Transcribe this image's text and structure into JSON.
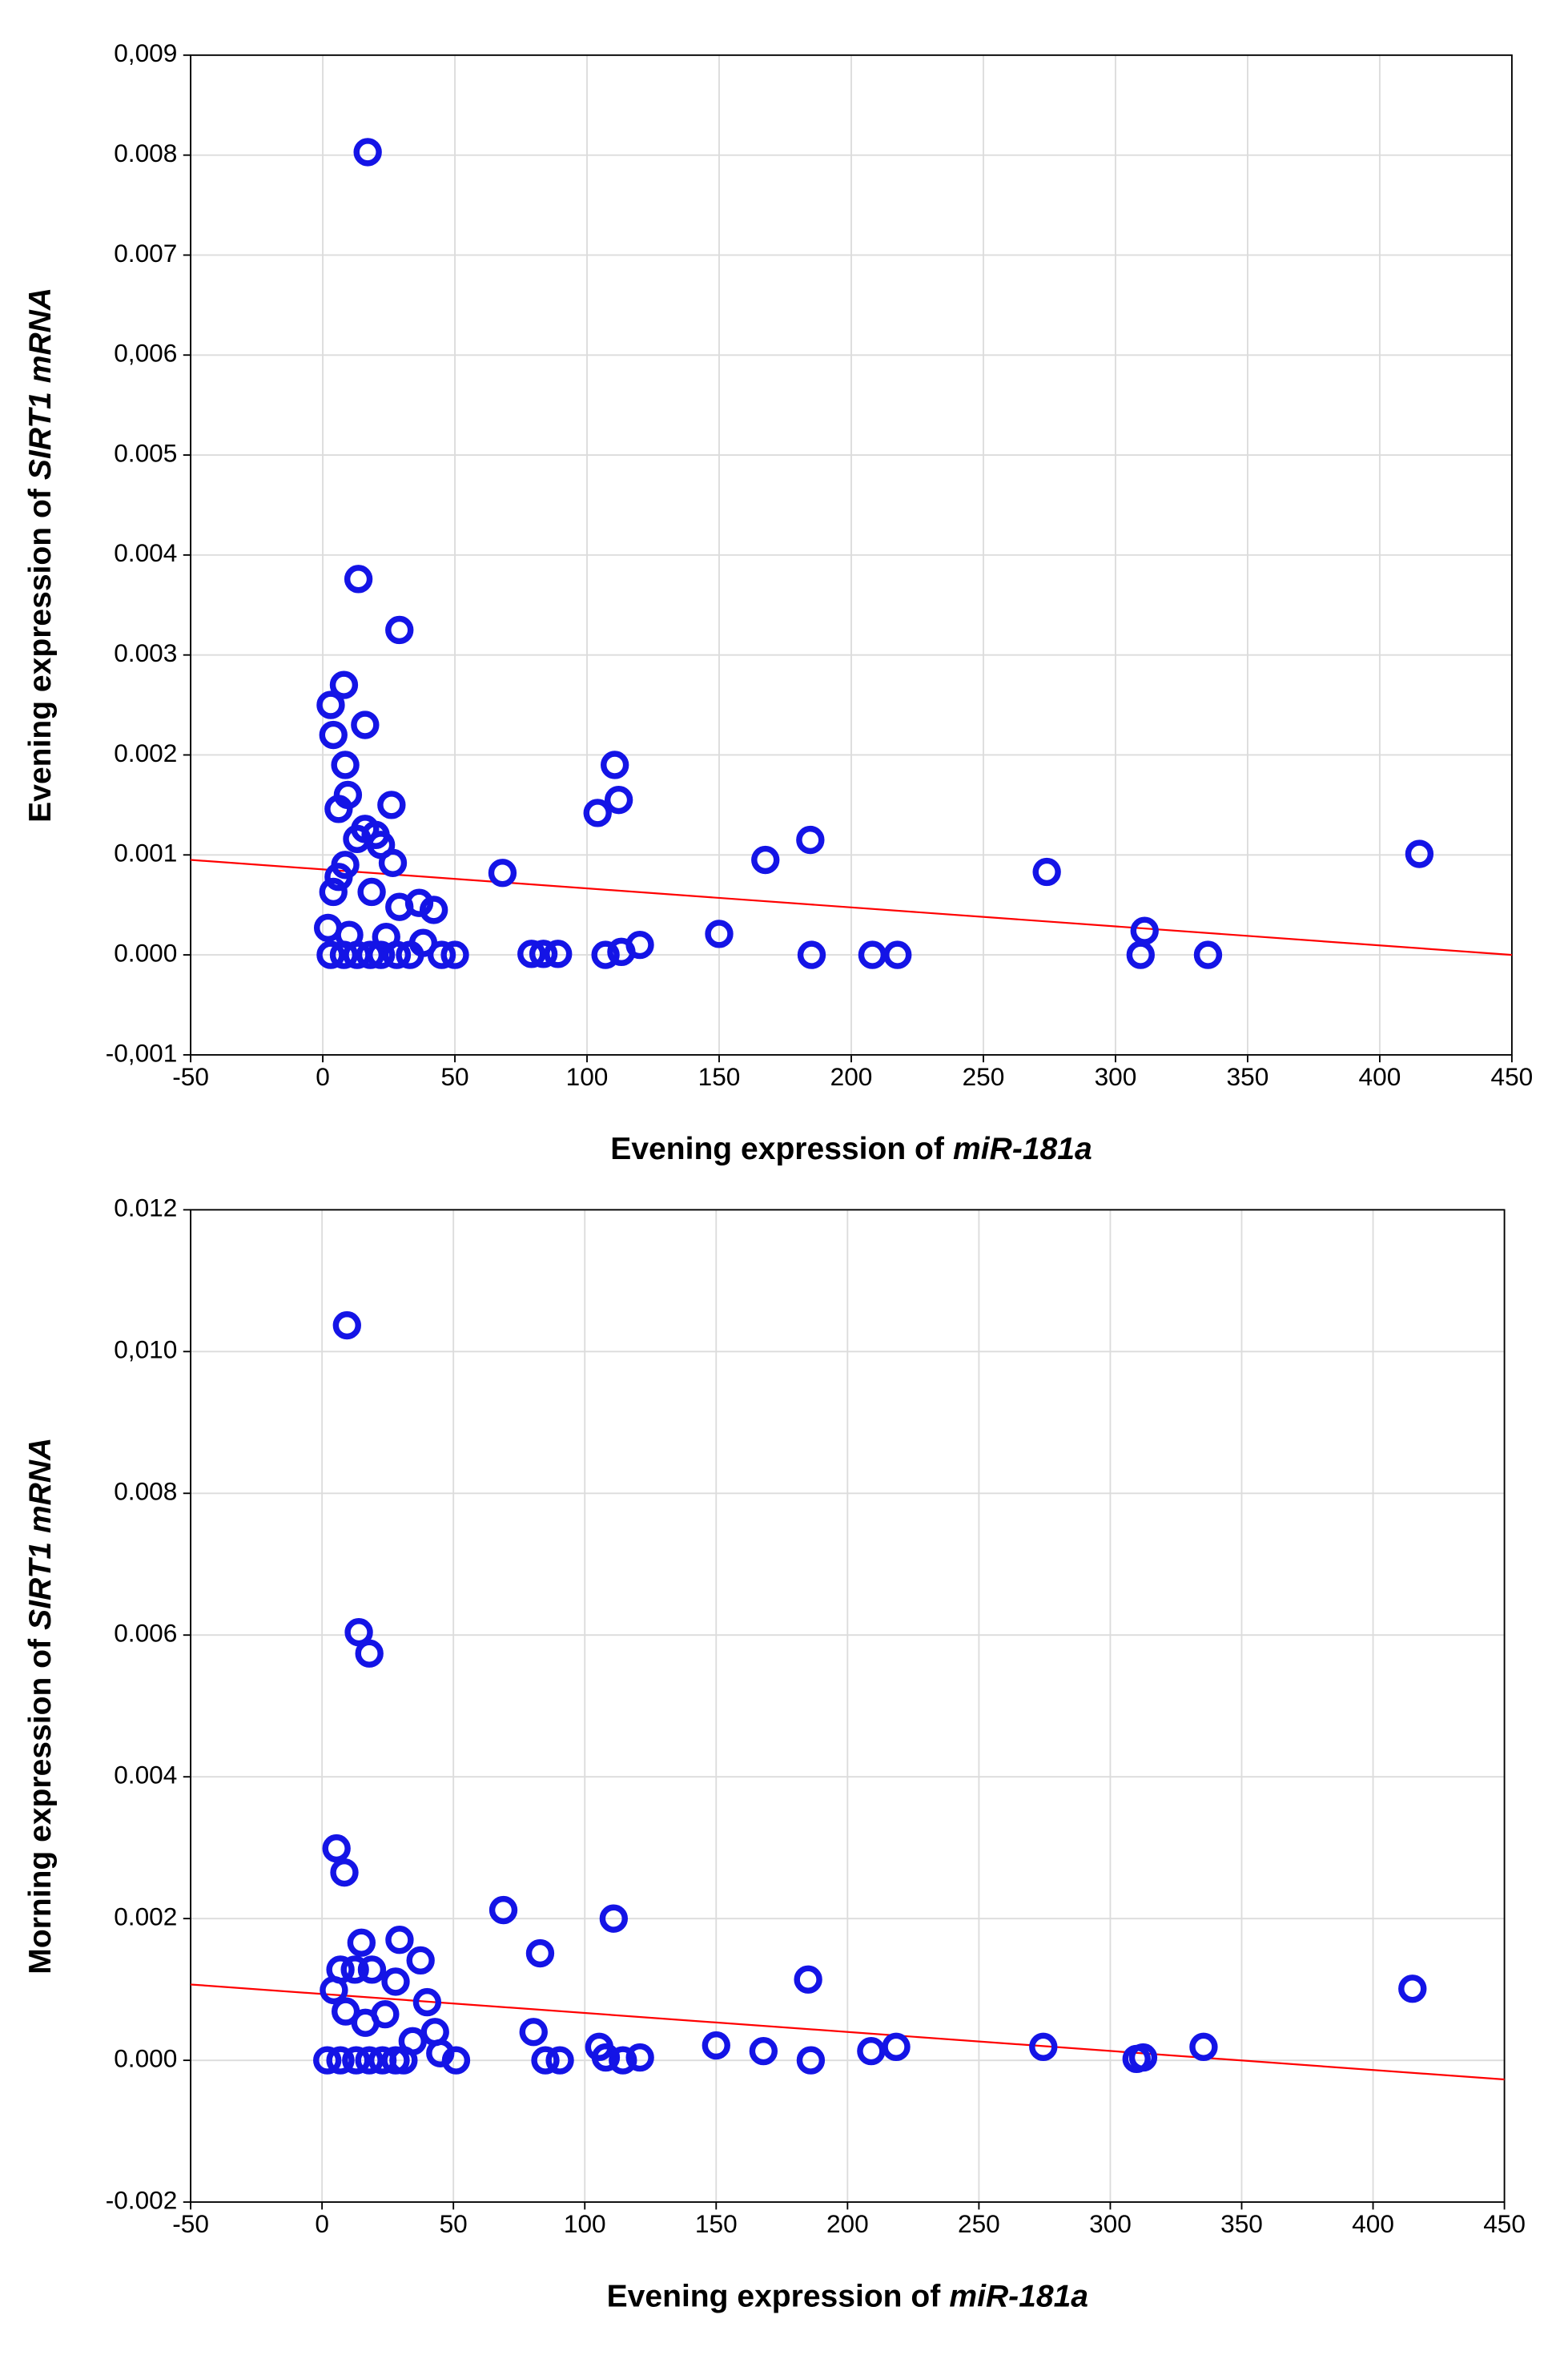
{
  "chart_data": [
    {
      "type": "scatter",
      "xlabel": {
        "text": "Evening expression of",
        "italic": "miR-181a"
      },
      "ylabel": {
        "text": "Evening expression of",
        "italic": "SIRT1 mRNA"
      },
      "xlim": [
        -50,
        450
      ],
      "xticks": [
        -50,
        0,
        50,
        100,
        150,
        200,
        250,
        300,
        350,
        400,
        450
      ],
      "ylim": [
        -0.001,
        0.009
      ],
      "yticks": [
        {
          "value": -0.001,
          "label": "-0,001"
        },
        {
          "value": 0,
          "label": "0.000"
        },
        0.001,
        0.002,
        0.003,
        0.004,
        0.005,
        {
          "value": 0.006,
          "label": "0,006"
        },
        0.007,
        0.008,
        {
          "value": 0.009,
          "label": "0,009"
        }
      ],
      "grid": true,
      "color": "#1414e6",
      "x": [
        17,
        13.5,
        29,
        8,
        3,
        4,
        16,
        8.5,
        9.5,
        6,
        26,
        16,
        20,
        13,
        22,
        26.5,
        6,
        8.5,
        4,
        18.5,
        36.5,
        42,
        29,
        2,
        10,
        24,
        38,
        3,
        8,
        13,
        18,
        22,
        28,
        33,
        45,
        50,
        68,
        104,
        110.5,
        112,
        79,
        83.5,
        89,
        107,
        113,
        120,
        150,
        167.5,
        184.5,
        185,
        208,
        217.5,
        274,
        309.5,
        311,
        335,
        415
      ],
      "y": [
        0.00803,
        0.00376,
        0.00325,
        0.0027,
        0.0025,
        0.0022,
        0.0023,
        0.0019,
        0.0016,
        0.00146,
        0.0015,
        0.00126,
        0.0012,
        0.00116,
        0.0011,
        0.00092,
        0.00078,
        0.0009,
        0.00063,
        0.00063,
        0.00052,
        0.00045,
        0.00048,
        0.00027,
        0.0002,
        0.00018,
        0.00012,
        0,
        0,
        0,
        0,
        0,
        0,
        0,
        0,
        0,
        0.00082,
        0.00142,
        0.0019,
        0.00155,
        1e-05,
        1e-05,
        1e-05,
        0,
        3e-05,
        0.0001,
        0.00021,
        0.00095,
        0.00115,
        0,
        0,
        0,
        0.00083,
        0,
        0.00024,
        0,
        0.00101
      ],
      "trend": {
        "x": [
          -50,
          450
        ],
        "y": [
          0.00095,
          0.0
        ],
        "color": "#ff0000"
      }
    },
    {
      "type": "scatter",
      "xlabel": {
        "text": "Evening expression of",
        "italic": "miR-181a"
      },
      "ylabel": {
        "text": "Morning expression of",
        "italic": "SIRT1 mRNA"
      },
      "xlim": [
        -50,
        450
      ],
      "xticks": [
        -50,
        0,
        50,
        100,
        150,
        200,
        250,
        300,
        350,
        400,
        450
      ],
      "ylim": [
        -0.002,
        0.012
      ],
      "yticks": [
        -0.002,
        {
          "value": 0,
          "label": "0.000"
        },
        0.002,
        0.004,
        0.006,
        0.008,
        {
          "value": 0.01,
          "label": "0,010"
        },
        0.012
      ],
      "grid": true,
      "color": "#1414e6",
      "x": [
        9.5,
        14,
        18,
        5.5,
        8.5,
        69,
        111,
        83,
        15,
        29.5,
        37.5,
        185,
        415,
        4.5,
        7,
        12.5,
        19,
        28,
        40,
        9,
        24,
        16.5,
        43,
        80.5,
        34.5,
        105.5,
        150,
        168,
        209,
        218.5,
        274.5,
        335.5,
        310,
        312.5,
        186,
        85,
        90.5,
        108,
        114.5,
        121,
        45,
        51,
        2,
        7,
        13,
        18,
        23,
        28,
        31
      ],
      "y": [
        0.01037,
        0.00604,
        0.00574,
        0.00299,
        0.00265,
        0.00212,
        0.002,
        0.00151,
        0.00166,
        0.0017,
        0.00141,
        0.00114,
        0.00101,
        0.00099,
        0.00128,
        0.00128,
        0.00128,
        0.00111,
        0.00082,
        0.00069,
        0.00065,
        0.00053,
        0.0004,
        0.0004,
        0.00027,
        0.00019,
        0.00021,
        0.00013,
        0.00013,
        0.00019,
        0.00019,
        0.00019,
        2e-05,
        4e-05,
        0,
        0,
        0,
        4e-05,
        0,
        4e-05,
        0.0001,
        0,
        0,
        0,
        0,
        0,
        0,
        0,
        0
      ],
      "trend": {
        "x": [
          -50,
          450
        ],
        "y": [
          0.00107,
          -0.00027
        ],
        "color": "#ff0000"
      }
    }
  ]
}
